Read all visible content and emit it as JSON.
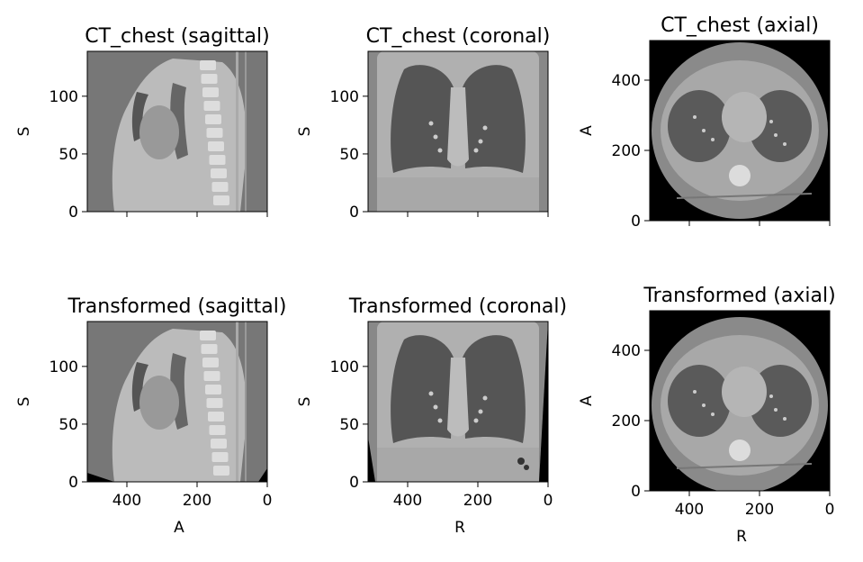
{
  "figure": {
    "panels": [
      {
        "id": "ct-sagittal",
        "title": "CT_chest (sagittal)",
        "ylabel": "S",
        "xlabel": "",
        "yticks": [
          "0",
          "50",
          "100"
        ],
        "xticks": [
          "",
          "",
          ""
        ],
        "show_xticklabels": false,
        "view": "sagittal",
        "tilt": 0
      },
      {
        "id": "ct-coronal",
        "title": "CT_chest (coronal)",
        "ylabel": "S",
        "xlabel": "",
        "yticks": [
          "0",
          "50",
          "100"
        ],
        "xticks": [
          "",
          "",
          ""
        ],
        "show_xticklabels": false,
        "view": "coronal",
        "tilt": 0
      },
      {
        "id": "ct-axial",
        "title": "CT_chest (axial)",
        "ylabel": "A",
        "xlabel": "",
        "yticks": [
          "0",
          "200",
          "400"
        ],
        "xticks": [
          "",
          "",
          ""
        ],
        "show_xticklabels": false,
        "view": "axial",
        "tilt": 0
      },
      {
        "id": "tr-sagittal",
        "title": "Transformed (sagittal)",
        "ylabel": "S",
        "xlabel": "A",
        "yticks": [
          "0",
          "50",
          "100"
        ],
        "xticks": [
          "400",
          "200",
          "0"
        ],
        "show_xticklabels": true,
        "view": "sagittal",
        "tilt": 1
      },
      {
        "id": "tr-coronal",
        "title": "Transformed (coronal)",
        "ylabel": "S",
        "xlabel": "R",
        "yticks": [
          "0",
          "50",
          "100"
        ],
        "xticks": [
          "400",
          "200",
          "0"
        ],
        "show_xticklabels": true,
        "view": "coronal",
        "tilt": 1
      },
      {
        "id": "tr-axial",
        "title": "Transformed (axial)",
        "ylabel": "A",
        "xlabel": "R",
        "yticks": [
          "0",
          "200",
          "400"
        ],
        "xticks": [
          "400",
          "200",
          "0"
        ],
        "show_xticklabels": true,
        "view": "axial",
        "tilt": 1
      }
    ]
  }
}
